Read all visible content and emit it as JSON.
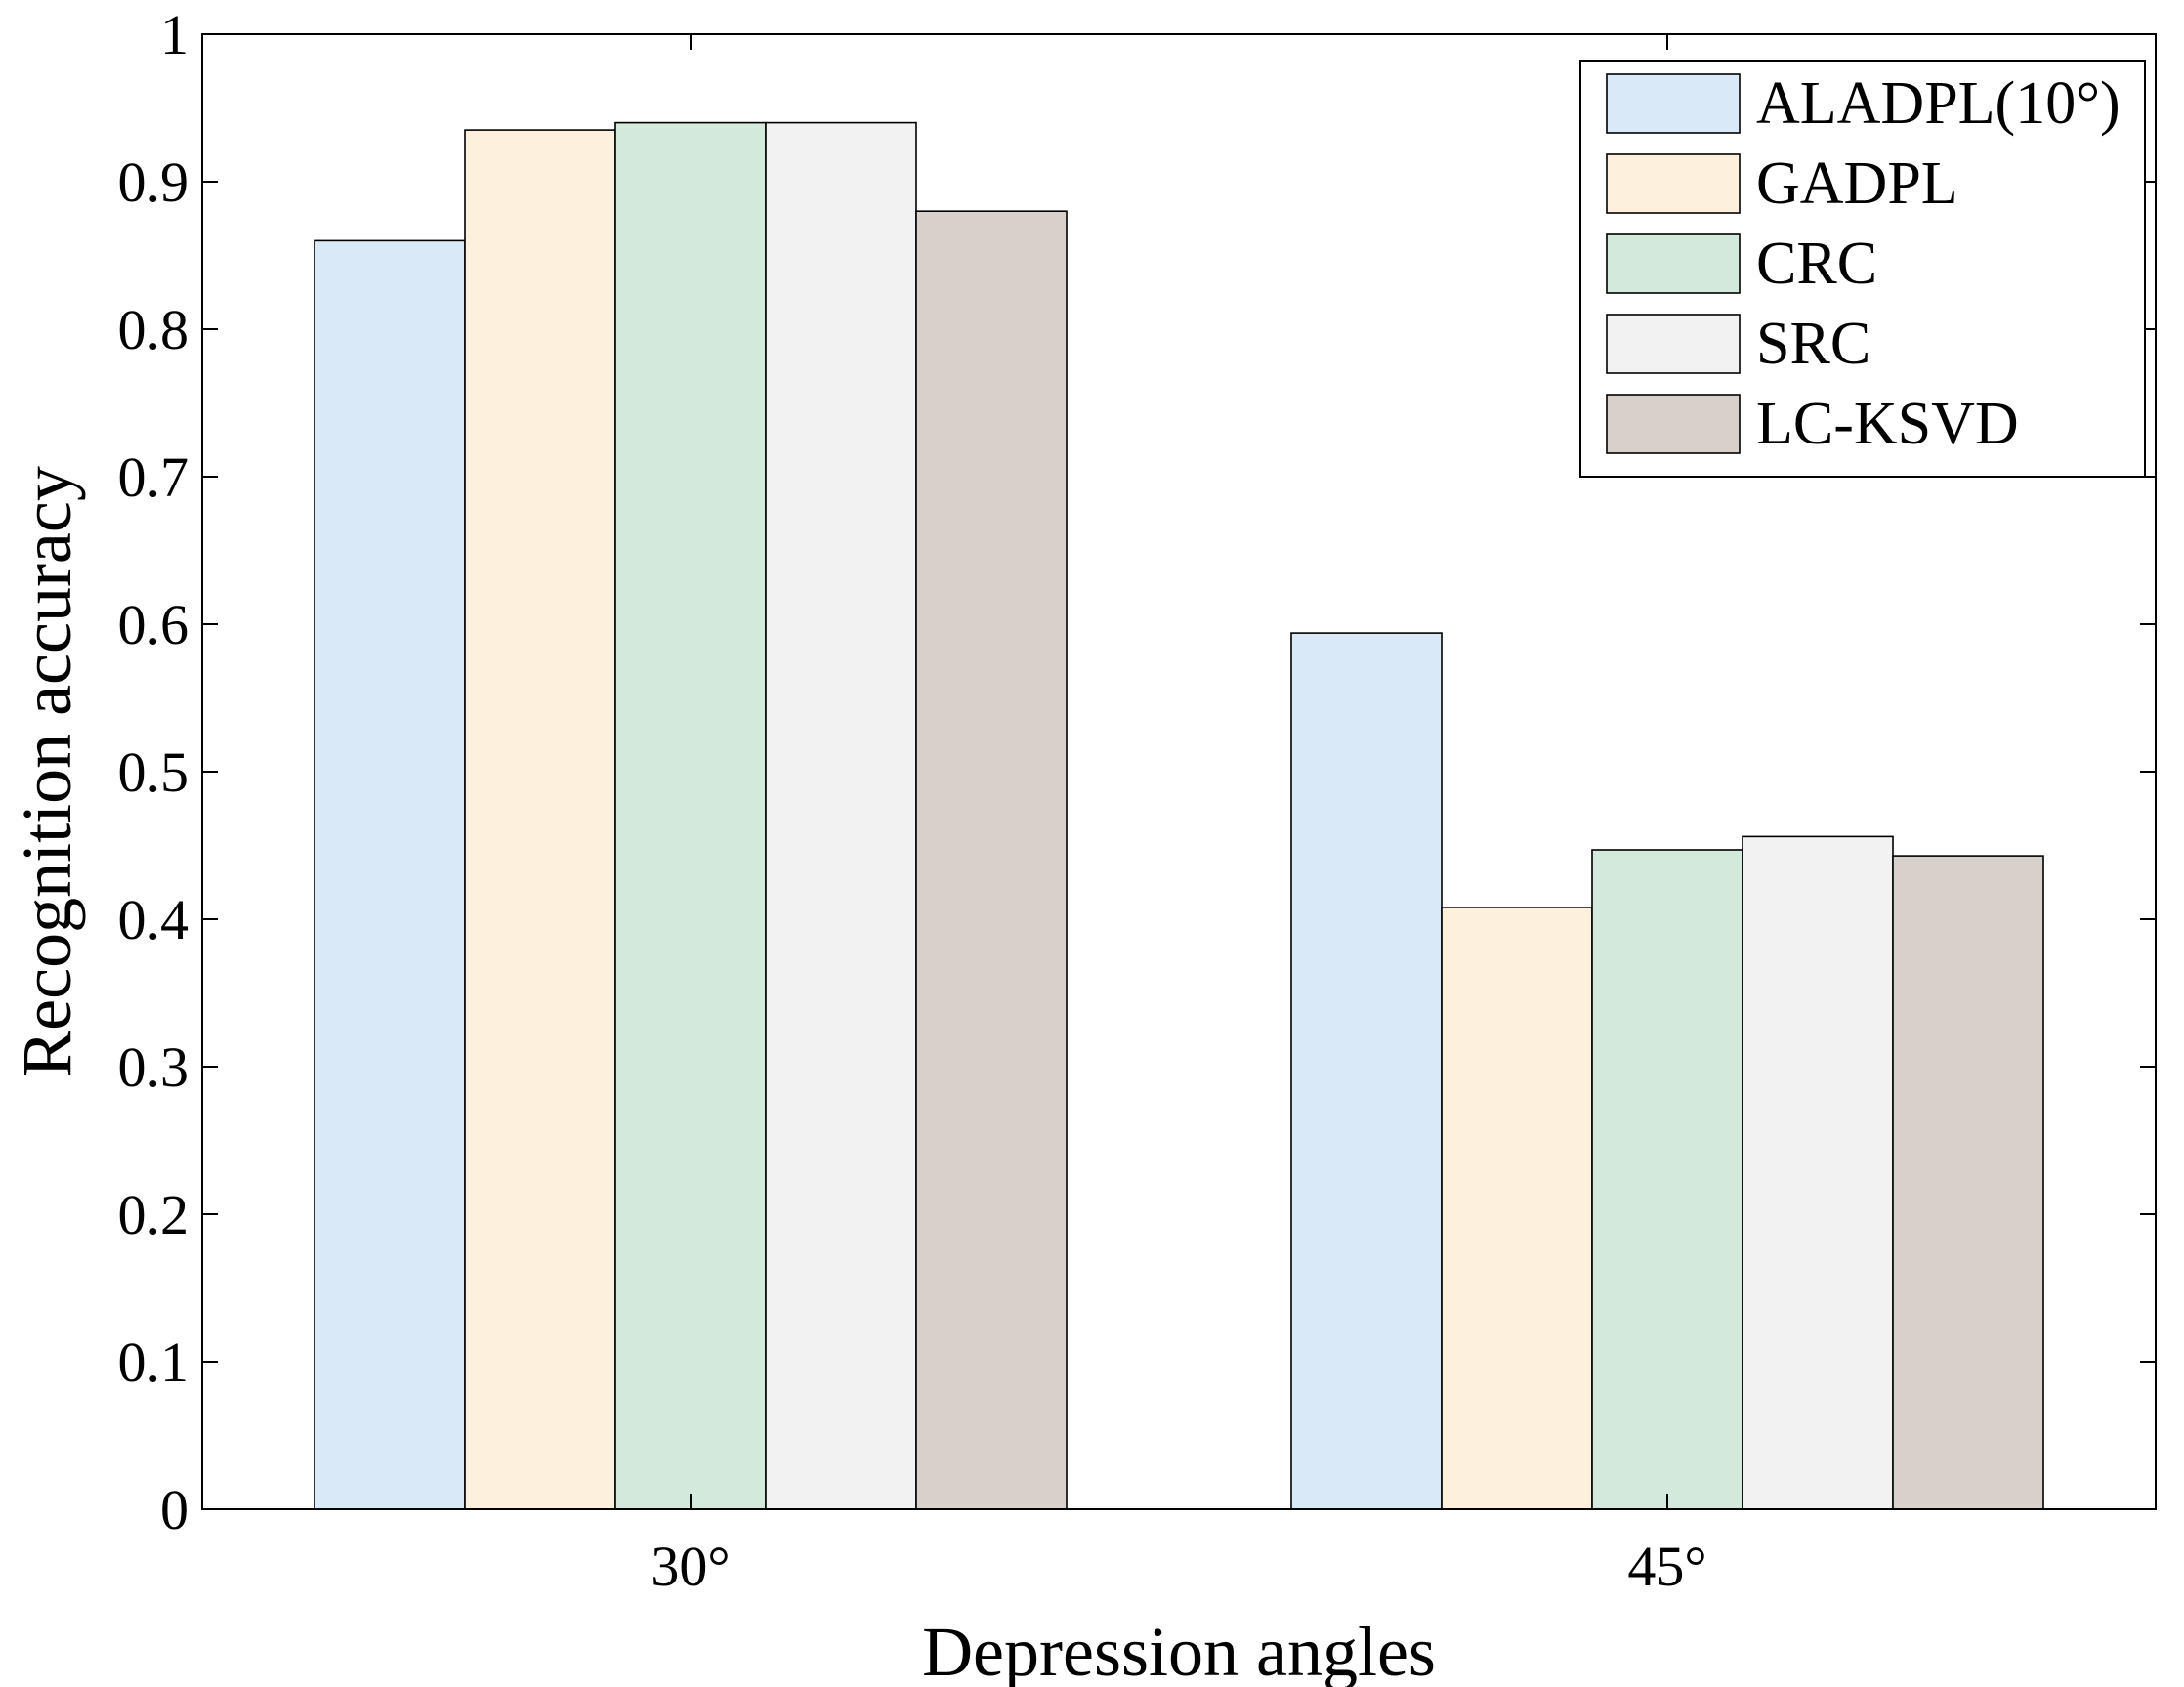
{
  "chart_data": {
    "type": "bar",
    "title": "",
    "xlabel": "Depression angles",
    "ylabel": "Recognition accuracy",
    "categories": [
      "30°",
      "45°"
    ],
    "ylim": [
      0,
      1
    ],
    "yticks": [
      0,
      0.1,
      0.2,
      0.3,
      0.4,
      0.5,
      0.6,
      0.7,
      0.8,
      0.9,
      1
    ],
    "ytick_labels": [
      "0",
      "0.1",
      "0.2",
      "0.3",
      "0.4",
      "0.5",
      "0.6",
      "0.7",
      "0.8",
      "0.9",
      "1"
    ],
    "legend_position": "top-right",
    "grid": false,
    "series": [
      {
        "name": "ALADPL(10°)",
        "color": "#dae9f7",
        "values": [
          0.86,
          0.594
        ]
      },
      {
        "name": "GADPL",
        "color": "#fdf0dc",
        "values": [
          0.935,
          0.408
        ]
      },
      {
        "name": "CRC",
        "color": "#d3e9db",
        "values": [
          0.94,
          0.447
        ]
      },
      {
        "name": "SRC",
        "color": "#f2f2f2",
        "values": [
          0.94,
          0.456
        ]
      },
      {
        "name": "LC-KSVD",
        "color": "#d8d0cb",
        "values": [
          0.88,
          0.443
        ]
      }
    ]
  }
}
